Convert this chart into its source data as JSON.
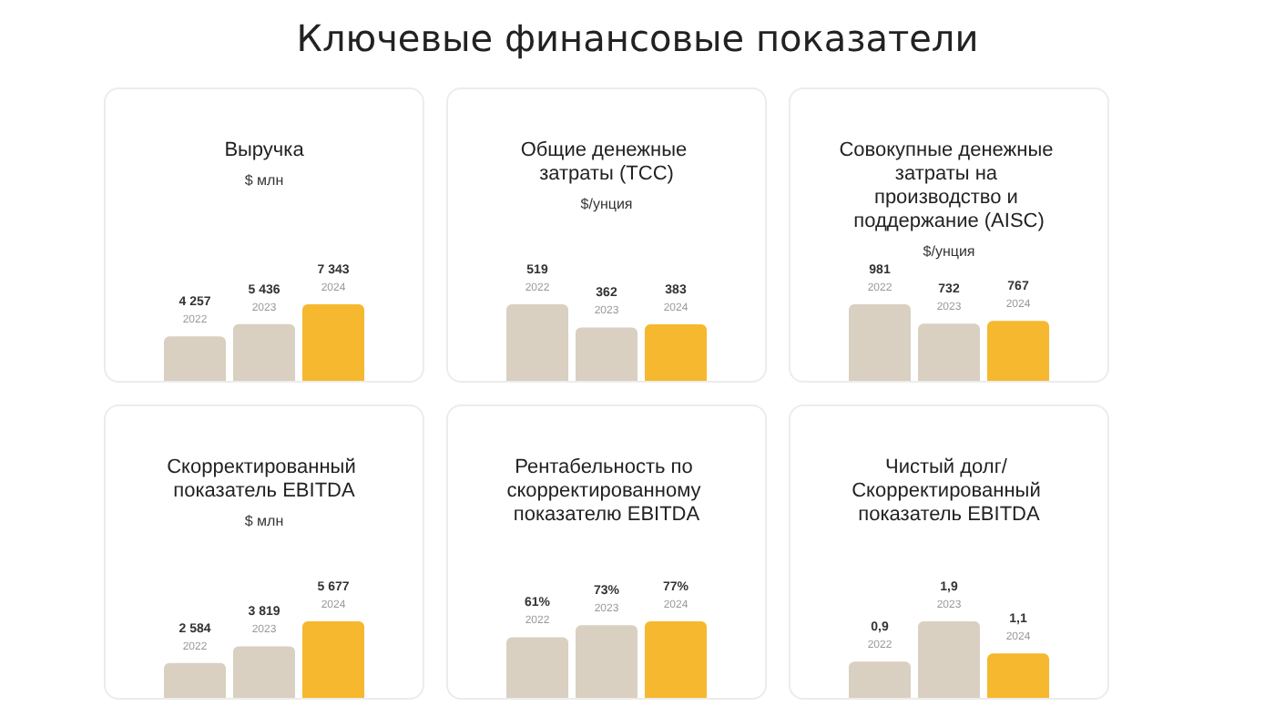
{
  "chart_data": [
    {
      "type": "other",
      "title": "Ключевые финансовые показатели"
    },
    {
      "type": "bar",
      "title": "Выручка",
      "subtitle": "$ млн",
      "categories": [
        "2022",
        "2023",
        "2024"
      ],
      "values": [
        4257,
        5436,
        7343
      ],
      "value_labels": [
        "4 257",
        "5 436",
        "7 343"
      ],
      "colors": [
        "#d9d0c1",
        "#d9d0c1",
        "#f5b82e"
      ]
    },
    {
      "type": "bar",
      "title": "Общие денежные затраты (TCC)",
      "subtitle": "$/унция",
      "categories": [
        "2022",
        "2023",
        "2024"
      ],
      "values": [
        519,
        362,
        383
      ],
      "data_labels": true,
      "colors": [
        "#d9d0c1",
        "#d9d0c1",
        "#f5b82e"
      ]
    },
    {
      "type": "bar",
      "title": "Совокупные денежные затраты на производство и поддержание (AISC)",
      "subtitle": "$/унция",
      "categories": [
        "2022",
        "2023",
        "2024"
      ],
      "values": [
        981,
        732,
        767
      ],
      "data_labels": true,
      "colors": [
        "#d9d0c1",
        "#d9d0c1",
        "#f5b82e"
      ]
    },
    {
      "type": "bar",
      "title": "Скорректированный показатель EBITDA",
      "subtitle": "$ млн",
      "categories": [
        "2022",
        "2023",
        "2024"
      ],
      "values": [
        2584,
        3819,
        5677
      ],
      "value_labels": [
        "2 584",
        "3 819",
        "5 677"
      ],
      "colors": [
        "#d9d0c1",
        "#d9d0c1",
        "#f5b82e"
      ]
    },
    {
      "type": "bar",
      "title": "Рентабельность по скорректированному показателю EBITDA",
      "categories": [
        "2022",
        "2023",
        "2024"
      ],
      "values": [
        61,
        73,
        77
      ],
      "value_labels": [
        "61%",
        "73%",
        "77%"
      ],
      "colors": [
        "#d9d0c1",
        "#d9d0c1",
        "#f5b82e"
      ]
    },
    {
      "type": "bar",
      "title": "Чистый долг/ Скорректированный показатель EBITDA",
      "categories": [
        "2022",
        "2023",
        "2024"
      ],
      "values": [
        0.9,
        1.9,
        1.1
      ],
      "value_labels": [
        "0,9",
        "1,9",
        "1,1"
      ],
      "colors": [
        "#d9d0c1",
        "#d9d0c1",
        "#f5b82e"
      ]
    }
  ]
}
